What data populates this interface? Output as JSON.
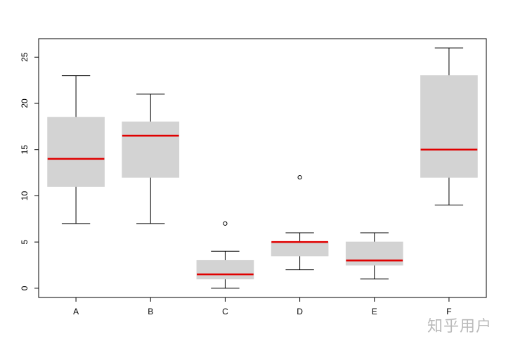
{
  "chart_data": {
    "type": "box",
    "categories": [
      "A",
      "B",
      "C",
      "D",
      "E",
      "F"
    ],
    "boxes": [
      {
        "category": "A",
        "whisker_low": 7,
        "q1": 11,
        "median": 14,
        "q3": 18.5,
        "whisker_high": 23,
        "outliers": []
      },
      {
        "category": "B",
        "whisker_low": 7,
        "q1": 12,
        "median": 16.5,
        "q3": 18,
        "whisker_high": 21,
        "outliers": []
      },
      {
        "category": "C",
        "whisker_low": 0,
        "q1": 1,
        "median": 1.5,
        "q3": 3,
        "whisker_high": 4,
        "outliers": [
          7
        ]
      },
      {
        "category": "D",
        "whisker_low": 2,
        "q1": 3.5,
        "median": 5,
        "q3": 5,
        "whisker_high": 6,
        "outliers": [
          12
        ]
      },
      {
        "category": "E",
        "whisker_low": 1,
        "q1": 2.5,
        "median": 3,
        "q3": 5,
        "whisker_high": 6,
        "outliers": []
      },
      {
        "category": "F",
        "whisker_low": 9,
        "q1": 12,
        "median": 15,
        "q3": 23,
        "whisker_high": 26,
        "outliers": []
      }
    ],
    "yticks": [
      0,
      5,
      10,
      15,
      20,
      25
    ],
    "ylim": [
      -1,
      27
    ],
    "xlabel": "",
    "ylabel": "",
    "title": "",
    "grid": false,
    "colors": {
      "box_fill": "#d3d3d3",
      "median": "#e00000",
      "whisker": "#000000"
    }
  },
  "watermark": "知乎用户"
}
